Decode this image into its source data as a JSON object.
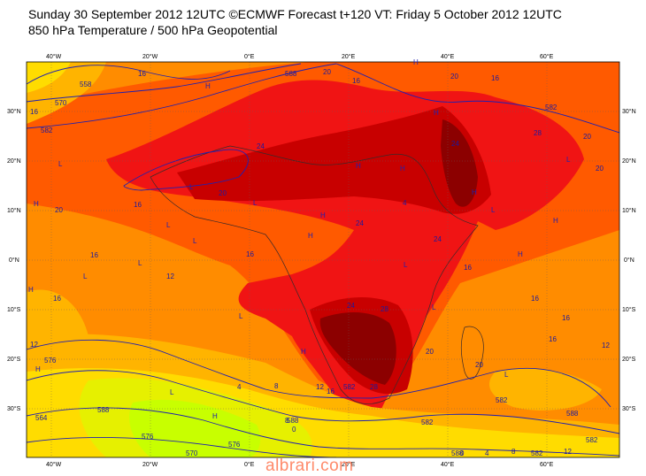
{
  "header": {
    "title_line1": "Sunday 30 September 2012 12UTC ©ECMWF Forecast t+120 VT: Friday 5 October 2012 12UTC",
    "title_line2": "850 hPa Temperature / 500 hPa Geopotential"
  },
  "axes": {
    "lon_top": [
      "40°W",
      "20°W",
      "0°E",
      "20°E",
      "40°E",
      "60°E"
    ],
    "lon_bottom": [
      "40°W",
      "20°W",
      "0°E",
      "20°E",
      "40°E",
      "60°E"
    ],
    "lat_left": [
      "30°N",
      "20°N",
      "10°N",
      "0°N",
      "10°S",
      "20°S",
      "30°S"
    ],
    "lat_right": [
      "30°N",
      "20°N",
      "10°N",
      "0°N",
      "10°S",
      "20°S",
      "30°S"
    ]
  },
  "colors": {
    "t_lt_0": "#c8ff00",
    "t_4": "#e6f000",
    "t_8": "#ffdc00",
    "t_12": "#ffb400",
    "t_16": "#ff8c00",
    "t_20": "#ff5a00",
    "t_24": "#f01414",
    "t_28": "#c80000",
    "t_32": "#8c0000",
    "geopotential_contour": "#2020b0"
  },
  "temperature_labels": [
    "16",
    "20",
    "16",
    "24",
    "20",
    "20",
    "16",
    "24",
    "28",
    "20",
    "24",
    "24",
    "28",
    "24",
    "16",
    "16",
    "16",
    "12",
    "12",
    "8",
    "4",
    "12",
    "16",
    "8",
    "0",
    "16",
    "20",
    "20",
    "28",
    "12",
    "8",
    "4",
    "0",
    "16",
    "4",
    "20",
    "16",
    "12",
    "16",
    "16",
    "20",
    "16"
  ],
  "geopotential_labels": [
    "558",
    "570",
    "582",
    "588",
    "582",
    "588",
    "582",
    "588",
    "582",
    "588",
    "582",
    "576",
    "564",
    "576",
    "582",
    "588",
    "582",
    "576",
    "570"
  ],
  "pressure_markers": [
    "H",
    "L",
    "H",
    "L",
    "H",
    "L",
    "L",
    "H",
    "H",
    "H",
    "L",
    "L",
    "H",
    "L",
    "H",
    "L",
    "H",
    "L",
    "H",
    "H",
    "L",
    "H",
    "L",
    "H",
    "L",
    "L",
    "H",
    "L",
    "H"
  ],
  "watermark": "albrari.com"
}
